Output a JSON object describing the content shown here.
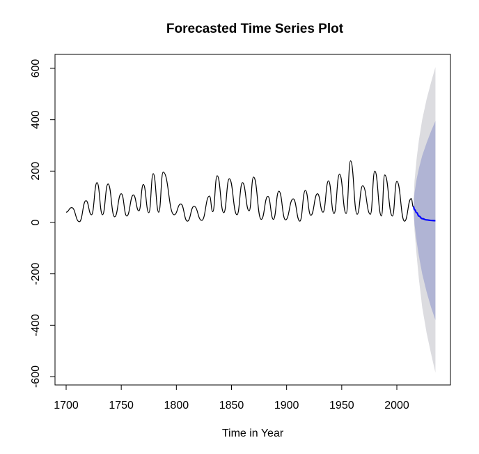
{
  "chart_data": {
    "type": "line",
    "title": "Forecasted Time Series Plot",
    "xlabel": "Time in Year",
    "ylabel": "",
    "xlim": [
      1700,
      2035
    ],
    "ylim": [
      -630,
      650
    ],
    "x_ticks": [
      "1700",
      "1750",
      "1800",
      "1850",
      "1900",
      "1950",
      "2000"
    ],
    "x_tick_values": [
      1700,
      1750,
      1800,
      1850,
      1900,
      1950,
      2000
    ],
    "y_ticks": [
      "-600",
      "-400",
      "-200",
      "0",
      "200",
      "400",
      "600"
    ],
    "y_tick_values": [
      -600,
      -400,
      -200,
      0,
      200,
      400,
      600
    ],
    "grid": false,
    "legend": "none",
    "colors": {
      "observed": "#000000",
      "forecast": "#0000ff",
      "interval_95": "#dcdce0",
      "interval_80": "#b0b4d4"
    },
    "observed_peaks": [
      [
        1700,
        40
      ],
      [
        1705,
        58
      ],
      [
        1712,
        3
      ],
      [
        1718,
        85
      ],
      [
        1723,
        30
      ],
      [
        1728,
        155
      ],
      [
        1733,
        30
      ],
      [
        1738,
        150
      ],
      [
        1744,
        22
      ],
      [
        1750,
        112
      ],
      [
        1755,
        25
      ],
      [
        1761,
        107
      ],
      [
        1766,
        45
      ],
      [
        1770,
        148
      ],
      [
        1775,
        38
      ],
      [
        1779,
        190
      ],
      [
        1784,
        40
      ],
      [
        1788,
        196
      ],
      [
        1798,
        30
      ],
      [
        1804,
        72
      ],
      [
        1810,
        5
      ],
      [
        1816,
        63
      ],
      [
        1823,
        8
      ],
      [
        1830,
        103
      ],
      [
        1833,
        42
      ],
      [
        1837,
        182
      ],
      [
        1843,
        38
      ],
      [
        1848,
        170
      ],
      [
        1855,
        30
      ],
      [
        1860,
        155
      ],
      [
        1866,
        45
      ],
      [
        1870,
        177
      ],
      [
        1877,
        12
      ],
      [
        1883,
        102
      ],
      [
        1888,
        12
      ],
      [
        1893,
        122
      ],
      [
        1899,
        10
      ],
      [
        1906,
        92
      ],
      [
        1912,
        5
      ],
      [
        1917,
        125
      ],
      [
        1922,
        28
      ],
      [
        1928,
        112
      ],
      [
        1933,
        40
      ],
      [
        1938,
        162
      ],
      [
        1943,
        35
      ],
      [
        1948,
        188
      ],
      [
        1954,
        35
      ],
      [
        1958,
        240
      ],
      [
        1964,
        32
      ],
      [
        1969,
        143
      ],
      [
        1976,
        32
      ],
      [
        1980,
        200
      ],
      [
        1986,
        25
      ],
      [
        1989,
        185
      ],
      [
        1996,
        25
      ],
      [
        2000,
        160
      ],
      [
        2007,
        5
      ],
      [
        2013,
        93
      ],
      [
        2015,
        60
      ]
    ],
    "forecast": {
      "x": [
        2015,
        2016,
        2018,
        2020,
        2023,
        2027,
        2031,
        2035
      ],
      "mean": [
        62,
        50,
        38,
        25,
        15,
        10,
        8,
        7
      ],
      "lower_80": [
        62,
        -5,
        -75,
        -130,
        -200,
        -270,
        -330,
        -380
      ],
      "upper_80": [
        62,
        115,
        170,
        210,
        260,
        310,
        355,
        395
      ],
      "lower_95": [
        62,
        -30,
        -130,
        -220,
        -330,
        -430,
        -510,
        -585
      ],
      "upper_95": [
        62,
        160,
        250,
        320,
        400,
        480,
        545,
        605
      ]
    }
  }
}
